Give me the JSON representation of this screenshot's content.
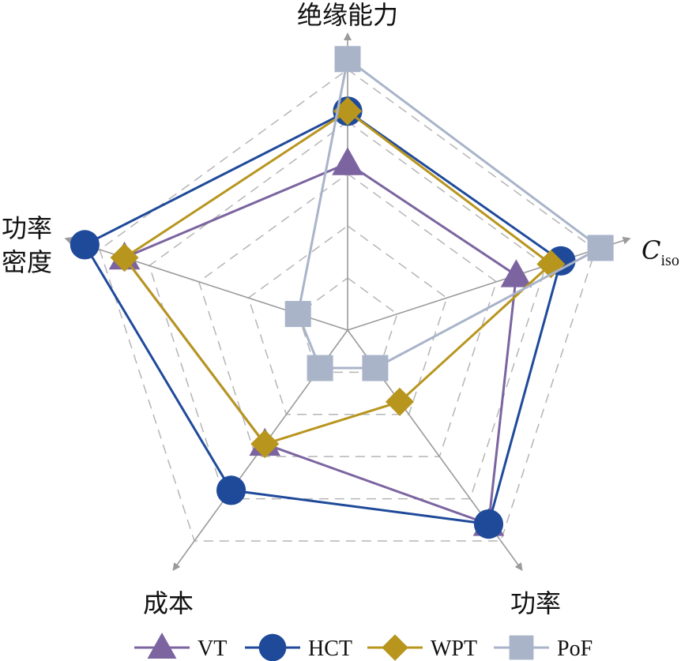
{
  "chart_data": {
    "type": "radar",
    "axes": [
      {
        "label": "绝缘能力"
      },
      {
        "label": "C",
        "subscript": "iso"
      },
      {
        "label": "功率"
      },
      {
        "label": "成本"
      },
      {
        "label_lines": [
          "功率",
          "密度"
        ]
      }
    ],
    "range": [
      0,
      5
    ],
    "grid_levels": 5,
    "grid": true,
    "legend_position": "bottom",
    "series": [
      {
        "name": "VT",
        "values": [
          3.2,
          3.4,
          4.6,
          2.7,
          4.5
        ],
        "color": "#7b64a0",
        "marker": "triangle"
      },
      {
        "name": "HCT",
        "values": [
          4.2,
          4.3,
          4.6,
          3.8,
          5.3
        ],
        "color": "#1f4a9a",
        "marker": "circle"
      },
      {
        "name": "WPT",
        "values": [
          4.2,
          4.1,
          1.7,
          2.7,
          4.5
        ],
        "color": "#b8951d",
        "marker": "diamond"
      },
      {
        "name": "PoF",
        "values": [
          5.2,
          5.1,
          0.9,
          0.9,
          1.0
        ],
        "color": "#a9b4c9",
        "marker": "square"
      }
    ]
  },
  "colors": {
    "axis": "#9a9a9a",
    "grid": "#b5b5b5"
  }
}
